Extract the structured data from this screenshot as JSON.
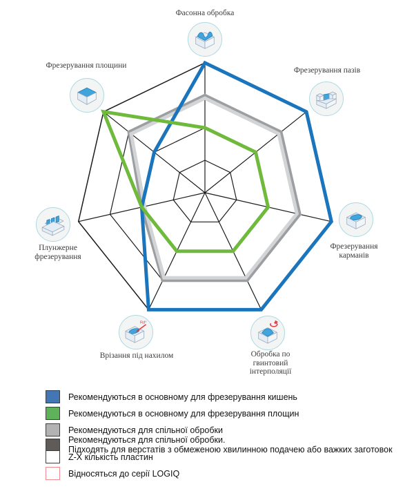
{
  "chart_data": {
    "type": "radar",
    "title": "",
    "scale": {
      "min": 0,
      "max": 4,
      "rings": 4
    },
    "grid_color": "#1b1b1b",
    "legend_position": "bottom-left",
    "axes": [
      {
        "label": "Фасонна обробка",
        "icon": "shaped-machining"
      },
      {
        "label": "Фрезерування пазів",
        "icon": "slot-milling"
      },
      {
        "label": "Фрезерування\nкарманів",
        "icon": "pocket-milling"
      },
      {
        "label": "Обробка по\nгвинтовий\nінтерполяції",
        "icon": "helical-interpolation"
      },
      {
        "label": "Врізання під нахилом",
        "icon": "ramping"
      },
      {
        "label": "Плунжерне\nфрезерування",
        "icon": "plunge-milling"
      },
      {
        "label": "Фрезерування площини",
        "icon": "face-milling"
      }
    ],
    "series": [
      {
        "id": "joint-machining-heavy",
        "name": "Рекомендуються для спільної обробки. Підходять для верстатів з обмеженою хвилинною подачею або важких заготовок",
        "color": "#9c9ea1",
        "width": 4.5,
        "offset": 0,
        "values": [
          3,
          3,
          3,
          3,
          3,
          2,
          3
        ]
      },
      {
        "id": "joint-machining",
        "name": "Рекомендуються для спільної обробки",
        "color": "#d2d4d5",
        "width": 5,
        "offset": -0.09,
        "values": [
          3,
          3,
          3,
          3,
          3,
          2,
          3
        ]
      },
      {
        "id": "pocket-milling-recommended",
        "name": "Рекомендуються в основному для фрезерування кишень",
        "color": "#1b75bc",
        "width": 5,
        "offset": 0,
        "values": [
          4,
          4,
          4,
          4,
          4,
          2,
          2
        ]
      },
      {
        "id": "face-milling-recommended",
        "name": "Рекомендуються в основному для фрезерування площин",
        "color": "#6fba3c",
        "width": 5,
        "offset": 0,
        "values": [
          2,
          2,
          2,
          2,
          2,
          2,
          4
        ]
      }
    ]
  },
  "legend": {
    "items": [
      {
        "label": "Рекомендуються в основному для фрезерування кишень",
        "swatch_fill": "#4376b5",
        "swatch_border": "#3d3d3d"
      },
      {
        "label": "Рекомендуються в основному для фрезерування площин",
        "swatch_fill": "#5fb25a",
        "swatch_border": "#3d3d3d"
      },
      {
        "label": "Рекомендуються для спільної обробки",
        "swatch_fill": "#b3b3b4",
        "swatch_border": "#3d3d3d"
      },
      {
        "label": "Рекомендуються для спільної обробки.\nПідходять для верстатів з обмеженою хвилинною подачею або важких заготовок",
        "swatch_fill": "#605b56",
        "swatch_border": "#3d3d3d"
      },
      {
        "label": "Z-X кількість пластин",
        "swatch_fill": "#ffffff",
        "swatch_border": "#3d3d3d"
      },
      {
        "label": "Відносяться до серії LOGIQ",
        "swatch_fill": "#ffffff",
        "swatch_border": "#f08a8c"
      }
    ]
  }
}
